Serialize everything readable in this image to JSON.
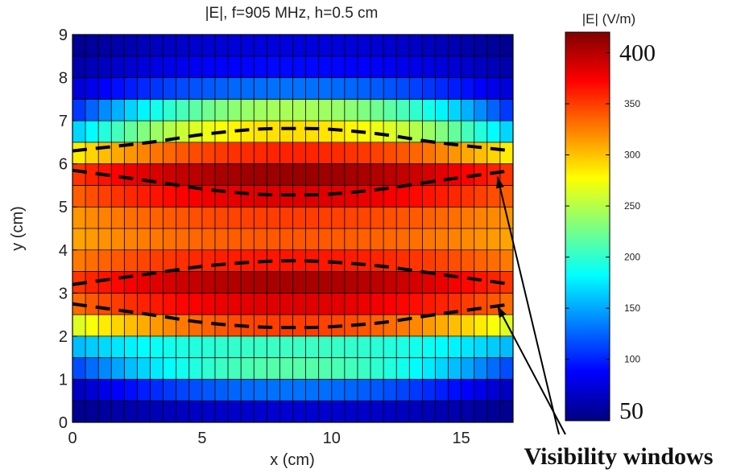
{
  "chart_data": {
    "type": "heatmap",
    "title": "|E|, f=905 MHz, h=0.5 cm",
    "xlabel": "x (cm)",
    "ylabel": "y (cm)",
    "xlim": [
      0,
      17
    ],
    "ylim": [
      0,
      9
    ],
    "x_ticks": [
      0,
      5,
      10,
      15
    ],
    "y_ticks": [
      0,
      1,
      2,
      3,
      4,
      5,
      6,
      7,
      8,
      9
    ],
    "grid": true,
    "colormap": "jet",
    "colorbar": {
      "label": "|E| (V/m)",
      "range": [
        40,
        420
      ],
      "ticks_small": [
        100,
        150,
        200,
        250,
        300,
        350
      ],
      "tick_large_bottom": 50,
      "tick_large_top": 400
    },
    "x_cells": 34,
    "y_cells": 18,
    "row_profile": [
      {
        "y_center": 0.25,
        "center": 70,
        "edge": 45
      },
      {
        "y_center": 0.75,
        "center": 130,
        "edge": 60
      },
      {
        "y_center": 1.25,
        "center": 215,
        "edge": 110
      },
      {
        "y_center": 1.75,
        "center": 205,
        "edge": 155
      },
      {
        "y_center": 2.25,
        "center": 350,
        "edge": 260
      },
      {
        "y_center": 2.75,
        "center": 385,
        "edge": 330
      },
      {
        "y_center": 3.25,
        "center": 405,
        "edge": 350
      },
      {
        "y_center": 3.75,
        "center": 365,
        "edge": 325
      },
      {
        "y_center": 4.25,
        "center": 340,
        "edge": 310
      },
      {
        "y_center": 4.75,
        "center": 350,
        "edge": 315
      },
      {
        "y_center": 5.25,
        "center": 385,
        "edge": 335
      },
      {
        "y_center": 5.75,
        "center": 410,
        "edge": 350
      },
      {
        "y_center": 6.25,
        "center": 360,
        "edge": 280
      },
      {
        "y_center": 6.75,
        "center": 290,
        "edge": 160
      },
      {
        "y_center": 7.25,
        "center": 245,
        "edge": 100
      },
      {
        "y_center": 7.75,
        "center": 130,
        "edge": 70
      },
      {
        "y_center": 8.25,
        "center": 90,
        "edge": 55
      },
      {
        "y_center": 8.75,
        "center": 75,
        "edge": 45
      }
    ],
    "dashed_curves": [
      {
        "x": [
          0,
          3,
          5,
          7,
          8.5,
          10,
          12,
          14,
          17
        ],
        "y": [
          6.3,
          6.5,
          6.68,
          6.8,
          6.82,
          6.8,
          6.68,
          6.5,
          6.3
        ]
      },
      {
        "x": [
          0,
          3,
          5,
          7,
          8.5,
          10,
          12,
          14,
          17
        ],
        "y": [
          5.85,
          5.6,
          5.42,
          5.3,
          5.28,
          5.3,
          5.42,
          5.6,
          5.85
        ]
      },
      {
        "x": [
          0,
          3,
          5,
          7,
          8.5,
          10,
          12,
          14,
          17
        ],
        "y": [
          3.2,
          3.45,
          3.62,
          3.72,
          3.75,
          3.72,
          3.62,
          3.45,
          3.2
        ]
      },
      {
        "x": [
          0,
          3,
          5,
          7,
          8.5,
          10,
          12,
          14,
          17
        ],
        "y": [
          2.75,
          2.5,
          2.32,
          2.22,
          2.2,
          2.22,
          2.32,
          2.5,
          2.75
        ]
      }
    ],
    "annotation": {
      "text": "Visibility windows",
      "arrow_targets": [
        {
          "x": 16.4,
          "y": 5.7
        },
        {
          "x": 16.4,
          "y": 2.7
        }
      ]
    }
  }
}
